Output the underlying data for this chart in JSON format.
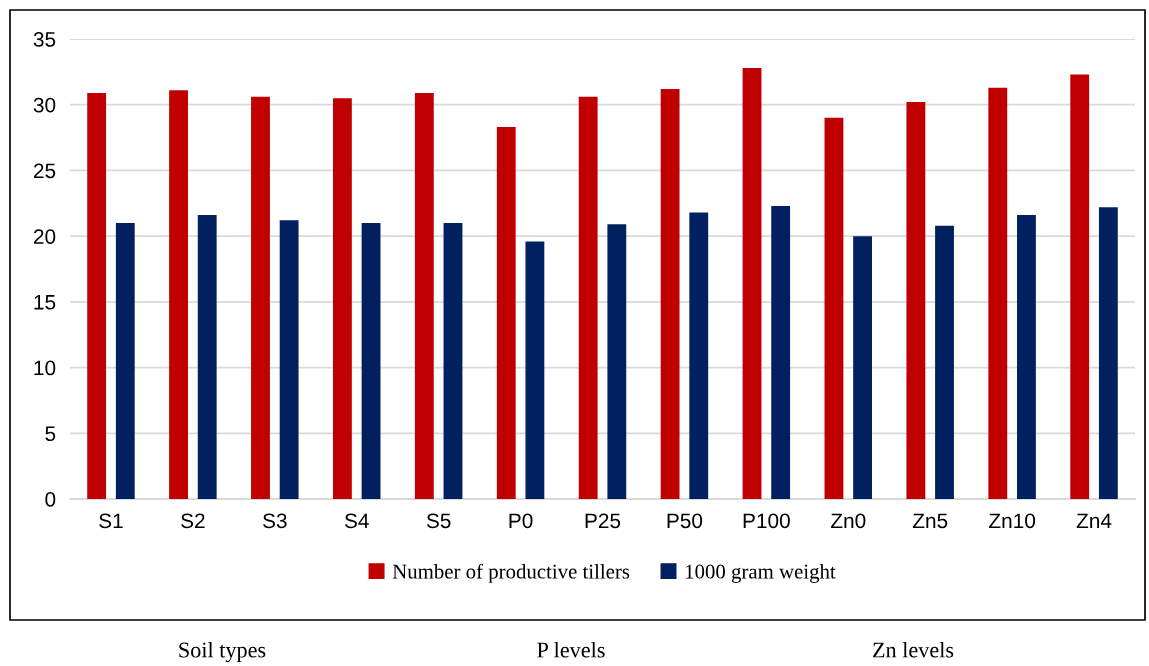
{
  "chart_data": {
    "type": "bar",
    "categories": [
      "S1",
      "S2",
      "S3",
      "S4",
      "S5",
      "P0",
      "P25",
      "P50",
      "P100",
      "Zn0",
      "Zn5",
      "Zn10",
      "Zn4"
    ],
    "series": [
      {
        "name": "Number of productive tillers",
        "color": "#c00000",
        "values": [
          30.9,
          31.1,
          30.6,
          30.5,
          30.9,
          28.3,
          30.6,
          31.2,
          32.8,
          29.0,
          30.2,
          31.3,
          32.3
        ]
      },
      {
        "name": "1000 gram weight",
        "color": "#002060",
        "values": [
          21.0,
          21.6,
          21.2,
          21.0,
          21.0,
          19.6,
          20.9,
          21.8,
          22.3,
          20.0,
          20.8,
          21.6,
          22.2
        ]
      }
    ],
    "ylim": [
      0,
      35
    ],
    "yticks": [
      0,
      5,
      10,
      15,
      20,
      25,
      30,
      35
    ],
    "grid": "y",
    "legend": "bottom",
    "annotations": [
      "Soil types",
      "P levels",
      "Zn levels"
    ]
  }
}
